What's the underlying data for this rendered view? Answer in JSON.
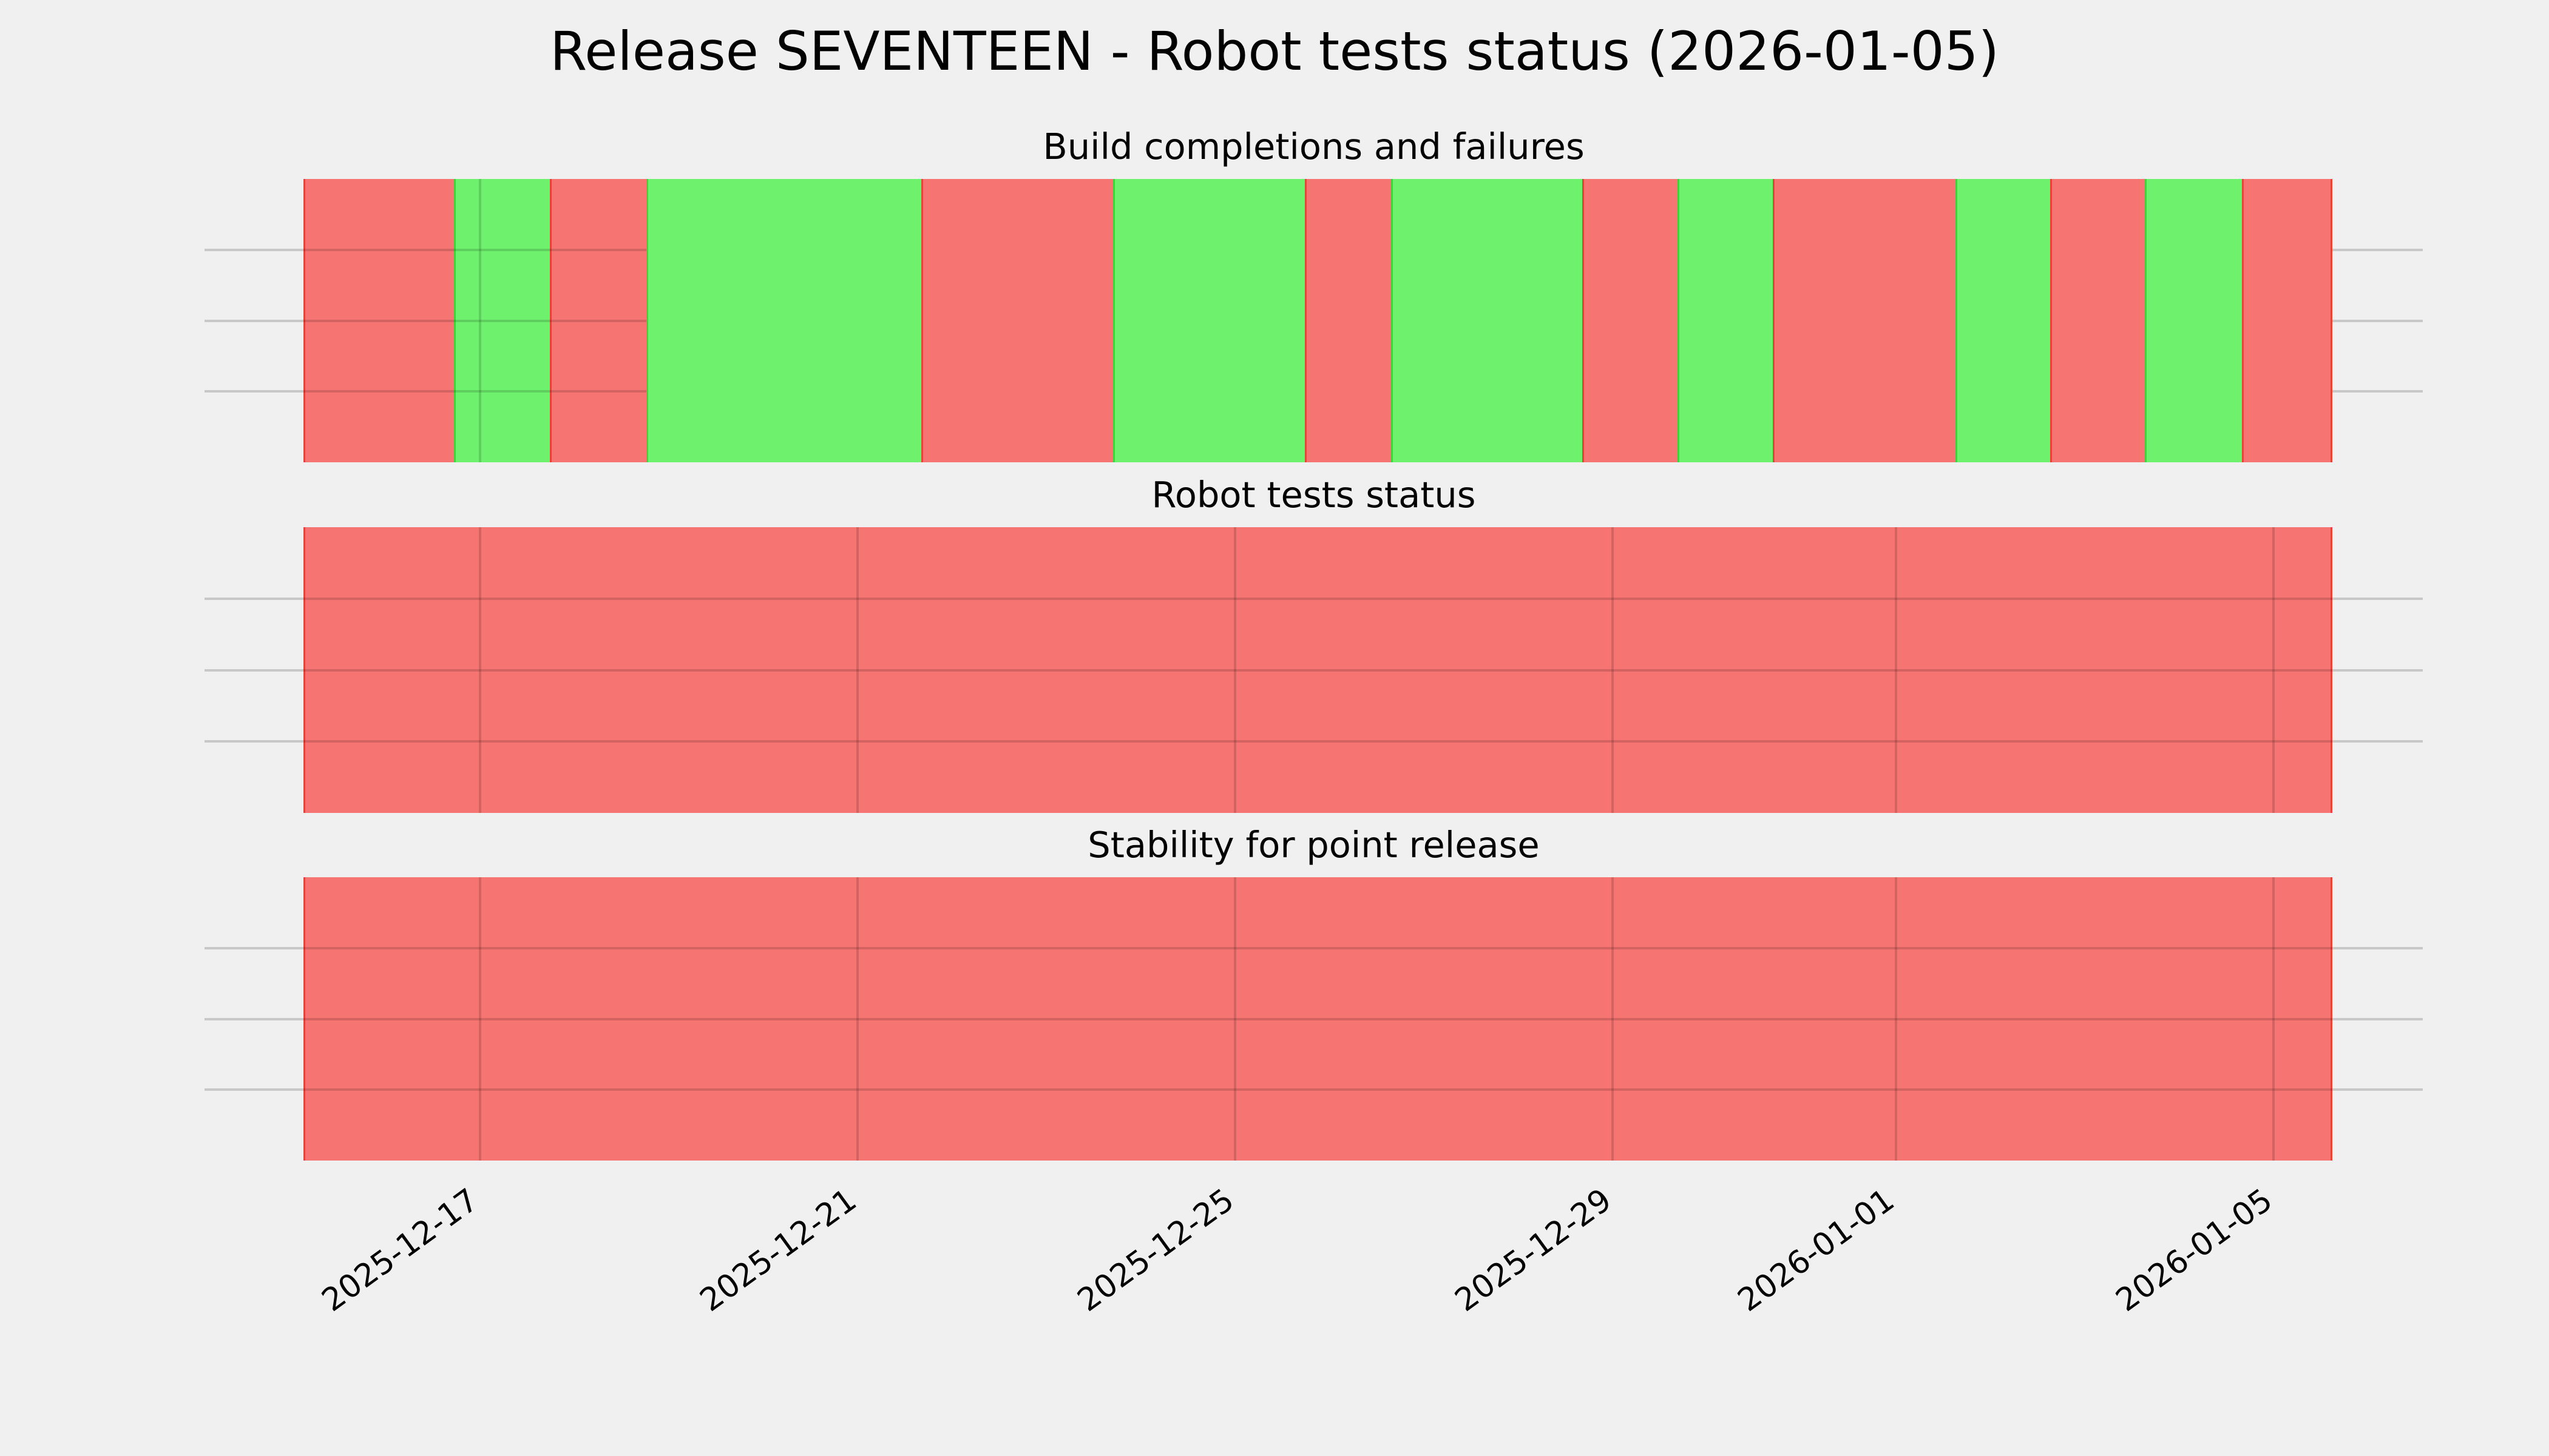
{
  "chart_data": {
    "type": "bar",
    "subtype": "status-timeline (broken horizontal spans over a date axis)",
    "title": "Release SEVENTEEN - Robot tests status (2026-01-05)",
    "grid": {
      "horizontal_lines_per_panel": 3,
      "vertical_lines": "at each date tick",
      "legend": "none"
    },
    "colors": {
      "pass_fill": "#6ef26e",
      "fail_fill": "#f67472",
      "pass_edge": "#3ed43e",
      "fail_edge": "#e8423d",
      "background": "#f0f0f0",
      "gridline": "#c8c8c8",
      "text": "#000000"
    },
    "x_axis": {
      "min": "2025-12-14T02:00:00",
      "max": "2026-01-06T14:00:00",
      "tick_values": [
        "2025-12-17T00:00:00",
        "2025-12-21T00:00:00",
        "2025-12-25T00:00:00",
        "2025-12-29T00:00:00",
        "2026-01-01T00:00:00",
        "2026-01-05T00:00:00"
      ],
      "tick_labels": [
        "2025-12-17",
        "2025-12-21",
        "2025-12-25",
        "2025-12-29",
        "2026-01-01",
        "2026-01-05"
      ]
    },
    "panels": [
      {
        "title": "Build completions and failures",
        "segments": [
          {
            "start": "2025-12-15T03:10:00",
            "end": "2025-12-16T17:50:00",
            "status": "fail"
          },
          {
            "start": "2025-12-16T17:50:00",
            "end": "2025-12-17T18:20:00",
            "status": "pass"
          },
          {
            "start": "2025-12-17T18:20:00",
            "end": "2025-12-18T18:45:00",
            "status": "fail"
          },
          {
            "start": "2025-12-18T18:45:00",
            "end": "2025-12-21T16:45:00",
            "status": "pass"
          },
          {
            "start": "2025-12-21T16:45:00",
            "end": "2025-12-23T17:30:00",
            "status": "fail"
          },
          {
            "start": "2025-12-23T17:30:00",
            "end": "2025-12-25T18:15:00",
            "status": "pass"
          },
          {
            "start": "2025-12-25T18:15:00",
            "end": "2025-12-26T16:10:00",
            "status": "fail"
          },
          {
            "start": "2025-12-26T16:10:00",
            "end": "2025-12-28T16:45:00",
            "status": "pass"
          },
          {
            "start": "2025-12-28T16:45:00",
            "end": "2025-12-29T17:00:00",
            "status": "fail"
          },
          {
            "start": "2025-12-29T17:00:00",
            "end": "2025-12-30T17:10:00",
            "status": "pass"
          },
          {
            "start": "2025-12-30T17:10:00",
            "end": "2026-01-01T15:35:00",
            "status": "fail"
          },
          {
            "start": "2026-01-01T15:35:00",
            "end": "2026-01-02T15:40:00",
            "status": "pass"
          },
          {
            "start": "2026-01-02T15:40:00",
            "end": "2026-01-03T15:50:00",
            "status": "fail"
          },
          {
            "start": "2026-01-03T15:50:00",
            "end": "2026-01-04T16:25:00",
            "status": "pass"
          },
          {
            "start": "2026-01-04T16:25:00",
            "end": "2026-01-05T15:00:00",
            "status": "fail"
          }
        ]
      },
      {
        "title": "Robot tests status",
        "segments": [
          {
            "start": "2025-12-15T03:10:00",
            "end": "2026-01-05T15:00:00",
            "status": "fail"
          }
        ]
      },
      {
        "title": "Stability for point release",
        "segments": [
          {
            "start": "2025-12-15T03:10:00",
            "end": "2026-01-05T15:00:00",
            "status": "fail"
          }
        ]
      }
    ]
  }
}
